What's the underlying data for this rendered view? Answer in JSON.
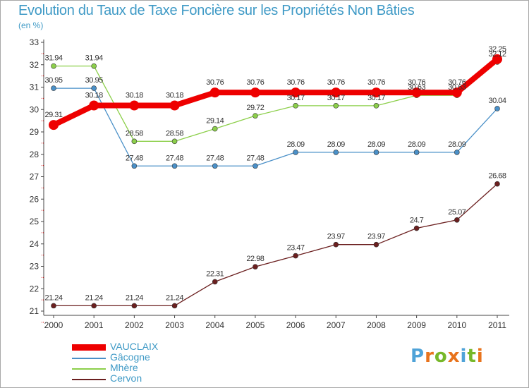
{
  "header": {
    "title": "Evolution du Taux de Taxe Foncière sur les Propriétés Non Bâties",
    "unit": "(en %)"
  },
  "logo": {
    "text": "Proxiti",
    "colors": [
      "#4fa3d8",
      "#e8731c",
      "#77b82a",
      "#e8731c",
      "#4fa3d8",
      "#77b82a",
      "#e8731c"
    ]
  },
  "chart_data": {
    "type": "line",
    "title": "Evolution du Taux de Taxe Foncière sur les Propriétés Non Bâties",
    "ylabel": "(en %)",
    "xlabel": "",
    "x": [
      "2000",
      "2001",
      "2002",
      "2003",
      "2004",
      "2005",
      "2006",
      "2007",
      "2008",
      "2009",
      "2010",
      "2011"
    ],
    "ylim": [
      21,
      33
    ],
    "yticks": [
      21,
      22,
      23,
      24,
      25,
      26,
      27,
      28,
      29,
      30,
      31,
      32,
      33
    ],
    "grid": false,
    "legend_position": "bottom-left",
    "series": [
      {
        "name": "Cervon",
        "color": "#6b1f1f",
        "values": [
          21.24,
          21.24,
          21.24,
          21.24,
          22.31,
          22.98,
          23.47,
          23.97,
          23.97,
          24.7,
          25.07,
          26.68
        ],
        "labels": [
          "21.24",
          "21.24",
          "21.24",
          "21.24",
          "22.31",
          "22.98",
          "23.47",
          "23.97",
          "23.97",
          "24.7",
          "25.07",
          "26.68"
        ]
      },
      {
        "name": "Gâcogne",
        "color": "#4a90c8",
        "values": [
          30.95,
          30.95,
          27.48,
          27.48,
          27.48,
          27.48,
          28.09,
          28.09,
          28.09,
          28.09,
          28.09,
          30.04
        ],
        "labels": [
          "30.95",
          "30.95",
          "27.48",
          "27.48",
          "27.48",
          "27.48",
          "28.09",
          "28.09",
          "28.09",
          "28.09",
          "28.09",
          "30.04"
        ]
      },
      {
        "name": "Mhère",
        "color": "#8ccf4a",
        "values": [
          31.94,
          31.94,
          28.58,
          28.58,
          29.14,
          29.72,
          30.17,
          30.17,
          30.17,
          30.63,
          30.63,
          32.12
        ],
        "labels": [
          "31.94",
          "31.94",
          "28.58",
          "28.58",
          "29.14",
          "29.72",
          "30.17",
          "30.17",
          "30.17",
          "30.63",
          "30.63",
          "32.12"
        ]
      },
      {
        "name": "VAUCLAIX",
        "color": "#ee0000",
        "values": [
          29.31,
          30.18,
          30.18,
          30.18,
          30.76,
          30.76,
          30.76,
          30.76,
          30.76,
          30.76,
          30.76,
          32.25
        ],
        "labels": [
          "29.31",
          "30.18",
          "30.18",
          "30.18",
          "30.76",
          "30.76",
          "30.76",
          "30.76",
          "30.76",
          "30.76",
          "30.76",
          "32.25"
        ]
      }
    ],
    "legend": [
      "VAUCLAIX",
      "Gâcogne",
      "Mhère",
      "Cervon"
    ]
  }
}
